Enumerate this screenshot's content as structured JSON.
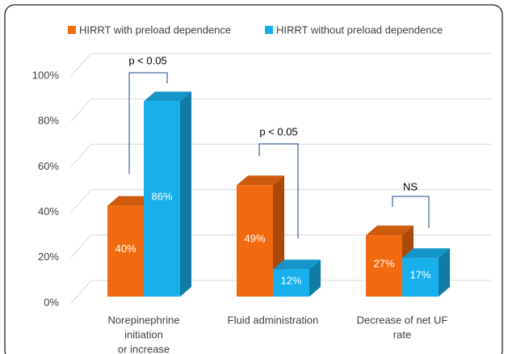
{
  "chart_data": {
    "type": "bar3d",
    "categories": [
      [
        "Norepinephrine",
        "initiation",
        "or increase"
      ],
      [
        "Fluid administration"
      ],
      [
        "Decrease of net UF",
        "rate"
      ]
    ],
    "series": [
      {
        "name": "HIRRT with preload dependence",
        "color": "#f26a10",
        "values": [
          40,
          49,
          27
        ],
        "value_labels": [
          "40%",
          "49%",
          "27%"
        ]
      },
      {
        "name": "HIRRT without preload dependence",
        "color": "#17b0ec",
        "values": [
          86,
          12,
          17
        ],
        "value_labels": [
          "86%",
          "12%",
          "17%"
        ]
      }
    ],
    "ylim": [
      0,
      100
    ],
    "yticks": [
      {
        "value": 0,
        "label": "0%"
      },
      {
        "value": 20,
        "label": "20%"
      },
      {
        "value": 40,
        "label": "40%"
      },
      {
        "value": 60,
        "label": "60%"
      },
      {
        "value": 80,
        "label": "80%"
      },
      {
        "value": 100,
        "label": "100%"
      }
    ],
    "annotations": [
      "p < 0.05",
      "p < 0.05",
      "NS"
    ],
    "grid": true
  }
}
